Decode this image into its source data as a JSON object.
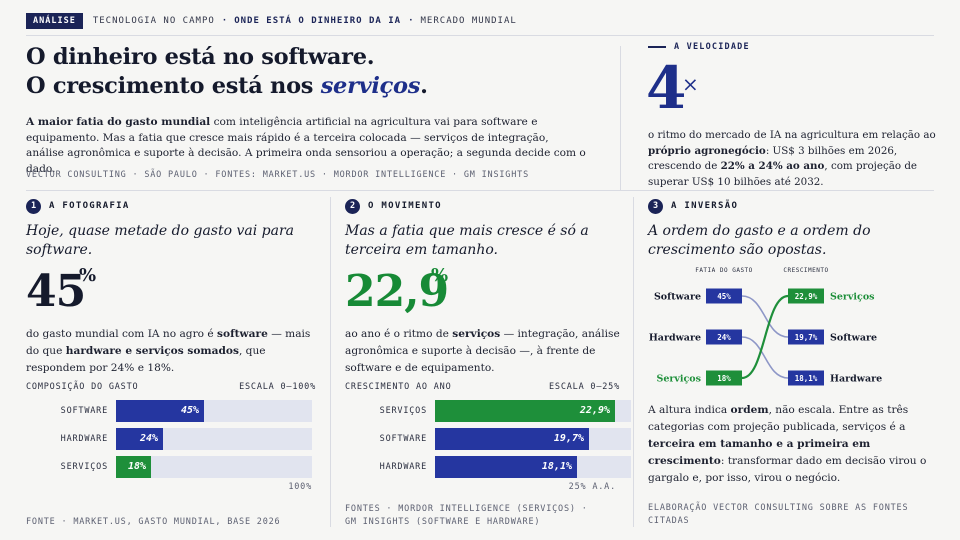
{
  "topbar": {
    "tag": "ANÁLISE",
    "crumbs": [
      "TECNOLOGIA NO CAMPO",
      "ONDE ESTÁ O DINHEIRO DA IA",
      "MERCADO MUNDIAL"
    ]
  },
  "headline": {
    "line1": "O dinheiro está no software.",
    "line2_pre": "O crescimento está nos ",
    "line2_ital": "serviços",
    "line2_post": "."
  },
  "lede": {
    "bold": "A maior fatia do gasto mundial",
    "rest": " com inteligência artificial na agricultura vai para software e equipamento. Mas a fatia que cresce mais rápido é a terceira colocada — serviços de integração, análise agronômica e suporte à decisão. A primeira onda sensoriou a operação; a segunda decide com o dado."
  },
  "credit_top": "VECTOR CONSULTING · SÃO PAULO · FONTES: MARKET.US · MORDOR INTELLIGENCE · GM INSIGHTS",
  "velocity": {
    "label": "A VELOCIDADE",
    "number": "4",
    "unit": "×",
    "t1": "o ritmo do mercado de IA na agricultura em relação ao ",
    "b1": "próprio agronegócio",
    "t2": ": US$ 3 bilhões em 2026, crescendo de ",
    "b2": "22% a 24% ao ano",
    "t3": ", com projeção de superar US$ 10 bilhões até 2032."
  },
  "sec1": {
    "badge": "1",
    "title": "A FOTOGRAFIA",
    "question": "Hoje, quase metade do gasto vai para software.",
    "big": "45",
    "big_unit": "%",
    "b_t1": "do gasto mundial com IA no agro é ",
    "b_b1": "software",
    "b_t2": " — mais do que ",
    "b_b2": "hardware e serviços somados",
    "b_t3": ", que respondem por 24% e 18%.",
    "chart_left": "COMPOSIÇÃO DO GASTO",
    "chart_right": "ESCALA 0–100%",
    "scale_end": "100%",
    "foot": "FONTE · MARKET.US, GASTO MUNDIAL, BASE 2026"
  },
  "sec2": {
    "badge": "2",
    "title": "O MOVIMENTO",
    "question": "Mas a fatia que mais cresce é só a terceira em tamanho.",
    "big": "22,9",
    "big_unit": "%",
    "b_t1": "ao ano é o ritmo de ",
    "b_b1": "serviços",
    "b_t2": " — integração, análise agronômica e suporte à decisão —, à frente de software e de equipamento.",
    "chart_left": "CRESCIMENTO AO ANO",
    "chart_right": "ESCALA 0–25%",
    "scale_end": "25% A.A.",
    "foot1": "FONTES · MORDOR INTELLIGENCE (SERVIÇOS) ·",
    "foot2": "GM INSIGHTS (SOFTWARE E HARDWARE)"
  },
  "sec3": {
    "badge": "3",
    "title": "A INVERSÃO",
    "question": "A ordem do gasto e a ordem do crescimento são opostas.",
    "col_left": "FATIA DO GASTO",
    "col_right": "CRESCIMENTO",
    "left": [
      {
        "name": "Software",
        "value": "45%",
        "hl": false
      },
      {
        "name": "Hardware",
        "value": "24%",
        "hl": false
      },
      {
        "name": "Serviços",
        "value": "18%",
        "hl": true
      }
    ],
    "right": [
      {
        "name": "Serviços",
        "value": "22,9%",
        "hl": true
      },
      {
        "name": "Software",
        "value": "19,7%",
        "hl": false
      },
      {
        "name": "Hardware",
        "value": "18,1%",
        "hl": false
      }
    ],
    "t1": "A altura indica ",
    "b1": "ordem",
    "t2": ", não escala. Entre as três categorias com projeção publicada, serviços é a ",
    "b2": "terceira em tamanho e a primeira em crescimento",
    "t3": ": transformar dado em decisão virou o gargalo e, por isso, virou o negócio.",
    "foot": "ELABORAÇÃO VECTOR CONSULTING SOBRE AS FONTES CITADAS"
  },
  "colors": {
    "navy": "#2536a0",
    "green": "#1e8f3a",
    "track": "#e1e4ef",
    "ink": "#1b2457"
  },
  "chart_data": [
    {
      "type": "bar",
      "title": "COMPOSIÇÃO DO GASTO",
      "categories": [
        "SOFTWARE",
        "HARDWARE",
        "SERVIÇOS"
      ],
      "values": [
        45,
        24,
        18
      ],
      "labels": [
        "45%",
        "24%",
        "18%"
      ],
      "highlight": [
        false,
        false,
        true
      ],
      "xlim": [
        0,
        100
      ],
      "scale_label": "ESCALA 0–100%"
    },
    {
      "type": "bar",
      "title": "CRESCIMENTO AO ANO",
      "categories": [
        "SERVIÇOS",
        "SOFTWARE",
        "HARDWARE"
      ],
      "values": [
        22.9,
        19.7,
        18.1
      ],
      "labels": [
        "22,9%",
        "19,7%",
        "18,1%"
      ],
      "highlight": [
        true,
        false,
        false
      ],
      "xlim": [
        0,
        25
      ],
      "scale_label": "ESCALA 0–25%"
    }
  ]
}
